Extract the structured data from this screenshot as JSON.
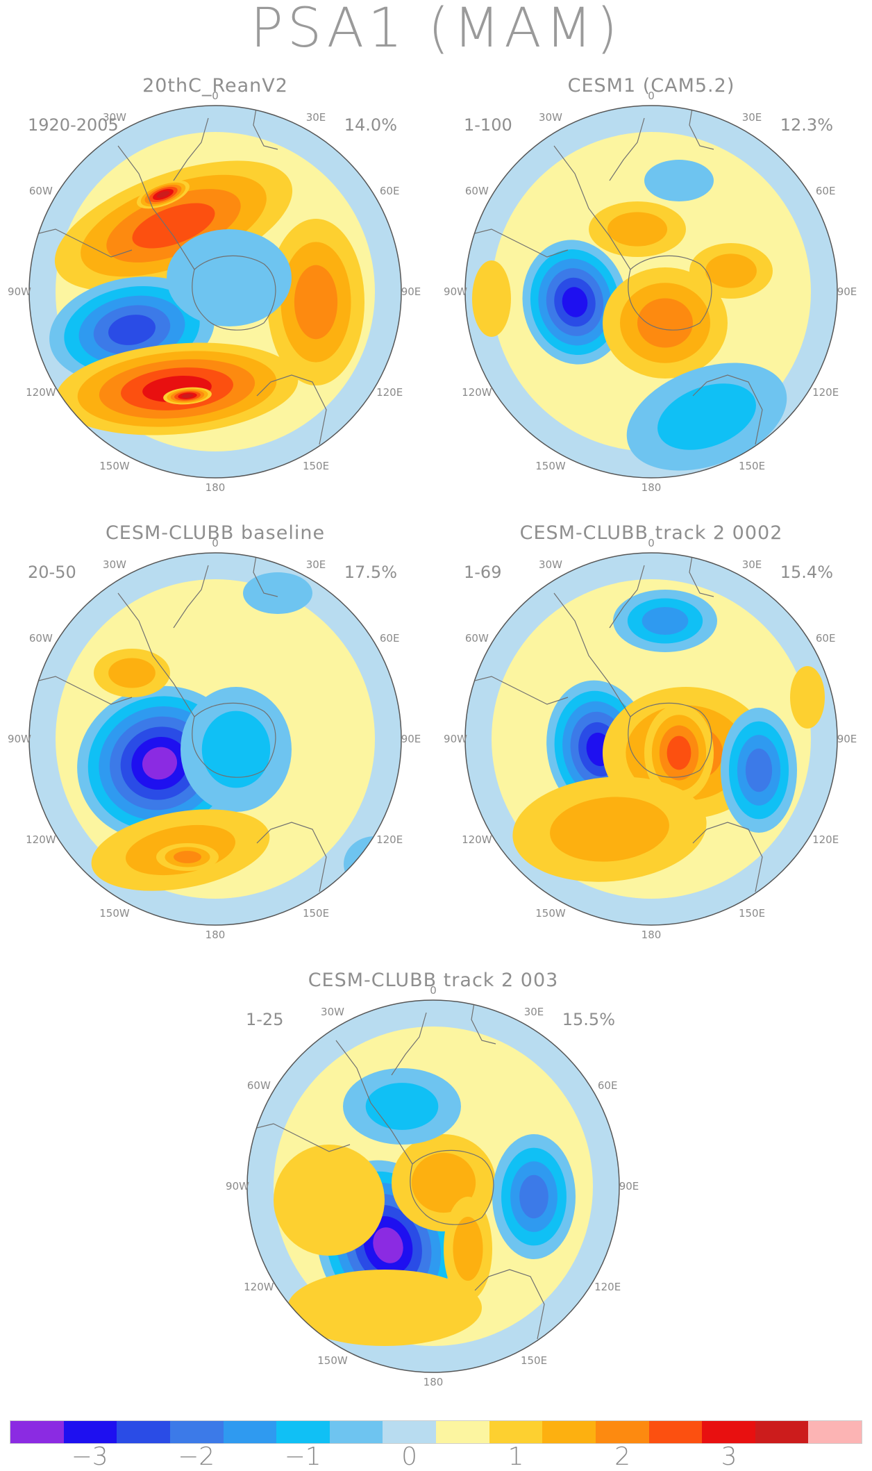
{
  "title": "PSA1 (MAM)",
  "panels": [
    {
      "id": "p1",
      "title": "20thC_ReanV2",
      "years": "1920-2005",
      "percent": "14.0%"
    },
    {
      "id": "p2",
      "title": "CESM1 (CAM5.2)",
      "years": "1-100",
      "percent": "12.3%"
    },
    {
      "id": "p3",
      "title": "CESM-CLUBB baseline",
      "years": "20-50",
      "percent": "17.5%"
    },
    {
      "id": "p4",
      "title": "CESM-CLUBB track 2 0002",
      "years": "1-69",
      "percent": "15.4%"
    },
    {
      "id": "p5",
      "title": "CESM-CLUBB track 2 003",
      "years": "1-25",
      "percent": "15.5%"
    }
  ],
  "longitude_labels": [
    "0",
    "30E",
    "60E",
    "90E",
    "120E",
    "150E",
    "180",
    "150W",
    "120W",
    "90W",
    "60W",
    "30W"
  ],
  "colorbar": {
    "colors": [
      "#8b2be2",
      "#1e10f0",
      "#2a4ce6",
      "#3c7ae8",
      "#2f9af0",
      "#10c0f5",
      "#6ec4f0",
      "#b8dcf0",
      "#fcf5a0",
      "#fdd030",
      "#fdb010",
      "#fd8a10",
      "#fc5010",
      "#e81010",
      "#cc1c1c",
      "#fcb4b4"
    ],
    "tick_labels": [
      "−3",
      "−2",
      "−1",
      "0",
      "1",
      "2",
      "3"
    ]
  },
  "colors": {
    "land_outline": "#707070",
    "map_ocean_neutral": "#fcf5a0",
    "map_negative_light": "#b8dcf0"
  }
}
